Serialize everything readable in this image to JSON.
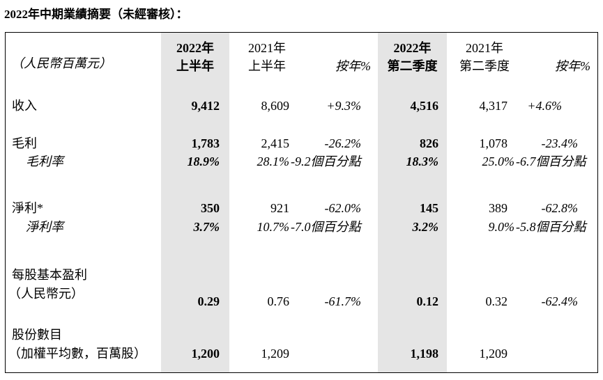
{
  "title": "2022年中期業績摘要（未經審核）：",
  "header": {
    "unit": "（人民幣百萬元）",
    "h1_2022": [
      "2022年",
      "上半年"
    ],
    "h1_2021": [
      "2021年",
      "上半年"
    ],
    "yoy": "按年%",
    "q2_2022": [
      "2022年",
      "第二季度"
    ],
    "q2_2021": [
      "2021年",
      "第二季度"
    ]
  },
  "rows": [
    {
      "label": "收入",
      "v": [
        "9,412",
        "8,609",
        "+9.3%",
        "4,516",
        "4,317",
        "+4.6%"
      ]
    },
    {
      "label": "毛利",
      "v": [
        "1,783",
        "2,415",
        "-26.2%",
        "826",
        "1,078",
        "-23.4%"
      ]
    },
    {
      "label": "毛利率",
      "v": [
        "18.9%",
        "28.1%",
        "-9.2個百分點",
        "18.3%",
        "25.0%",
        "-6.7個百分點"
      ]
    },
    {
      "label": "淨利*",
      "v": [
        "350",
        "921",
        "-62.0%",
        "145",
        "389",
        "-62.8%"
      ]
    },
    {
      "label": "淨利率",
      "v": [
        "3.7%",
        "10.7%",
        "-7.0個百分點",
        "3.2%",
        "9.0%",
        "-5.8個百分點"
      ]
    },
    {
      "label": "每股基本盈利",
      "label2": "（人民幣元）",
      "v": [
        "0.29",
        "0.76",
        "-61.7%",
        "0.12",
        "0.32",
        "-62.4%"
      ]
    },
    {
      "label": "股份數目",
      "label2": "（加權平均數，百萬股）",
      "v": [
        "1,200",
        "1,209",
        "",
        "1,198",
        "1,209",
        ""
      ]
    }
  ]
}
